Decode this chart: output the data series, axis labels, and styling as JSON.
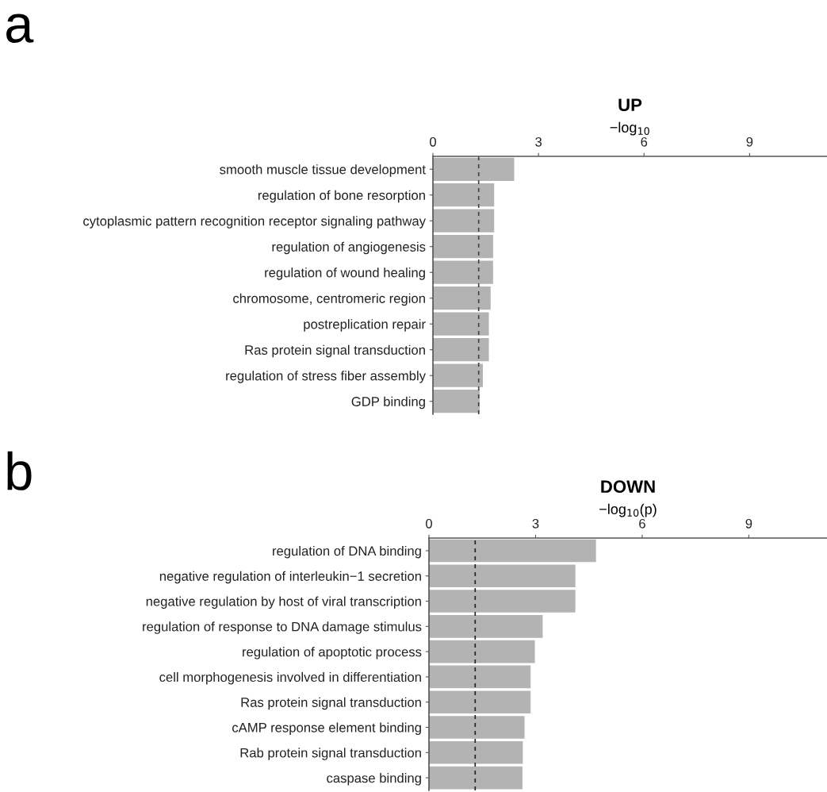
{
  "chart_data": [
    {
      "type": "bar",
      "orientation": "horizontal",
      "title": "UP",
      "xlabel": "−log$_{10}$",
      "annotations": [
        "a"
      ],
      "categories": [
        "smooth muscle tissue development",
        "regulation of bone resorption",
        "cytoplasmic pattern recognition receptor signaling pathway",
        "regulation of angiogenesis",
        "regulation of wound healing",
        "chromosome, centromeric region",
        "postreplication repair",
        "Ras protein signal transduction",
        "regulation of stress fiber assembly",
        "GDP binding"
      ],
      "values": [
        2.31,
        1.74,
        1.74,
        1.71,
        1.71,
        1.64,
        1.59,
        1.59,
        1.42,
        1.33
      ],
      "color": "#b3b3b3",
      "xlim": [
        0,
        11.2
      ],
      "xticks": [
        0,
        3,
        6,
        9
      ],
      "grid": false,
      "legend": false,
      "ref_lines": [
        {
          "axis": "x",
          "value": 1.3,
          "color": "#444444",
          "line_style": "dashed"
        }
      ]
    },
    {
      "type": "bar",
      "orientation": "horizontal",
      "title": "DOWN",
      "xlabel": "−log$_{10}$(p)",
      "annotations": [
        "b"
      ],
      "categories": [
        "regulation of DNA binding",
        "negative regulation of interleukin−1 secretion",
        "negative regulation by host of viral transcription",
        "regulation of response to DNA damage stimulus",
        "regulation of apoptotic process",
        "cell morphogenesis involved in differentiation",
        "Ras protein signal transduction",
        "cAMP response element binding",
        "Rab protein signal transduction",
        "caspase binding"
      ],
      "values": [
        4.7,
        4.12,
        4.12,
        3.2,
        2.98,
        2.86,
        2.86,
        2.69,
        2.64,
        2.63
      ],
      "color": "#b3b3b3",
      "xlim": [
        0,
        11.2
      ],
      "xticks": [
        0,
        3,
        6,
        9
      ],
      "grid": false,
      "legend": false,
      "ref_lines": [
        {
          "axis": "x",
          "value": 1.3,
          "color": "#222222",
          "line_style": "dashed"
        }
      ]
    }
  ]
}
